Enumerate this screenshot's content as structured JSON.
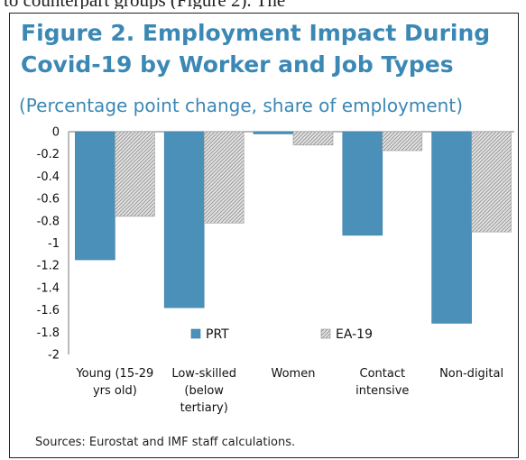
{
  "top_snippet": "to counterpart groups (Figure 2). The",
  "figure": {
    "title": "Figure 2. Employment Impact During Covid-19 by Worker and Job Types",
    "subtitle": "(Percentage point change, share of employment)",
    "source": "Sources: Eurostat and IMF staff calculations."
  },
  "chart_data": {
    "type": "bar",
    "categories": [
      [
        "Young (15-29",
        "yrs old)"
      ],
      [
        "Low-skilled",
        "(below",
        "tertiary)"
      ],
      [
        "Women"
      ],
      [
        "Contact",
        "intensive"
      ],
      [
        "Non-digital"
      ]
    ],
    "series": [
      {
        "name": "PRT",
        "values": [
          -1.15,
          -1.58,
          -0.02,
          -0.93,
          -1.72
        ],
        "color": "#4a90b8"
      },
      {
        "name": "EA-19",
        "values": [
          -0.76,
          -0.82,
          -0.12,
          -0.17,
          -0.9
        ],
        "color": "#bdbdbd",
        "pattern": "hatched"
      }
    ],
    "ylim": [
      -2,
      0
    ],
    "yticks": [
      0,
      -0.2,
      -0.4,
      -0.6,
      -0.8,
      -1,
      -1.2,
      -1.4,
      -1.6,
      -1.8,
      -2
    ],
    "ytick_labels": [
      "0",
      "-0.2",
      "-0.4",
      "-0.6",
      "-0.8",
      "-1",
      "-1.2",
      "-1.4",
      "-1.6",
      "-1.8",
      "-2"
    ],
    "legend_position": "bottom-center"
  }
}
